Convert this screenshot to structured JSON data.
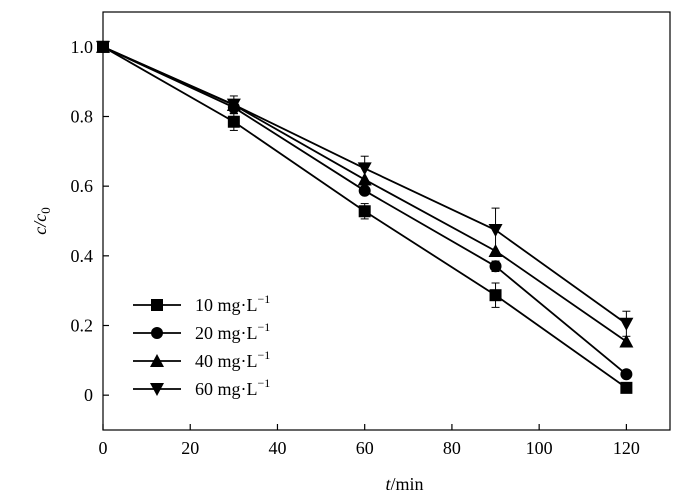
{
  "chart_data": {
    "type": "line",
    "xlabel": "t/min",
    "ylabel": "c/c0",
    "xlim": [
      0,
      130
    ],
    "ylim": [
      -0.1,
      1.1
    ],
    "x_ticks": [
      0,
      20,
      40,
      60,
      80,
      100,
      120
    ],
    "y_ticks": [
      0,
      0.2,
      0.4,
      0.6,
      0.8,
      1.0
    ],
    "grid": false,
    "legend_position": "bottom-left",
    "x": [
      0,
      30,
      60,
      90,
      120
    ],
    "series": [
      {
        "name": "10 mg·L−1",
        "marker": "square",
        "values": [
          1.0,
          0.785,
          0.528,
          0.287,
          0.021
        ],
        "errors": [
          0.0,
          0.025,
          0.022,
          0.035,
          0.0
        ]
      },
      {
        "name": "20 mg·L−1",
        "marker": "circle",
        "values": [
          1.0,
          0.826,
          0.587,
          0.37,
          0.06
        ],
        "errors": [
          0.0,
          0.018,
          0.0,
          0.015,
          0.0
        ]
      },
      {
        "name": "40 mg·L−1",
        "marker": "triangle-up",
        "values": [
          1.0,
          0.833,
          0.619,
          0.414,
          0.154
        ],
        "errors": [
          0.0,
          0.0,
          0.0,
          0.0,
          0.0
        ]
      },
      {
        "name": "60 mg·L−1",
        "marker": "triangle-down",
        "values": [
          1.0,
          0.834,
          0.651,
          0.474,
          0.205
        ],
        "errors": [
          0.0,
          0.025,
          0.035,
          0.063,
          0.036
        ]
      }
    ]
  }
}
